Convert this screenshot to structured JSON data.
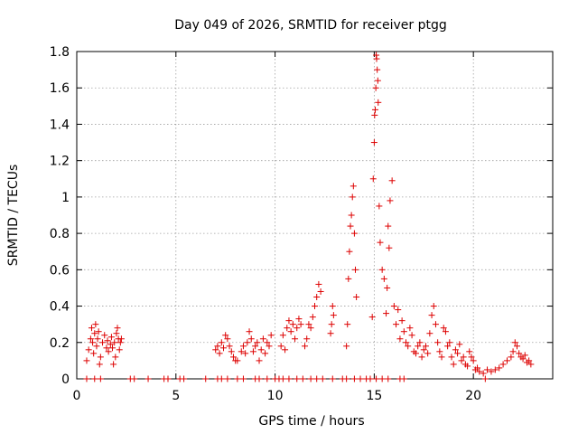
{
  "chart_data": {
    "type": "scatter",
    "title": "Day 049 of 2026, SRMTID for receiver ptgg",
    "xlabel": "GPS time / hours",
    "ylabel": "SRMTID / TECUs",
    "xlim": [
      0,
      24
    ],
    "ylim": [
      0,
      1.8
    ],
    "xticks": [
      0,
      5,
      10,
      15,
      20
    ],
    "xtick_labels": [
      "0",
      "5",
      "10",
      "15",
      "20"
    ],
    "yticks": [
      0,
      0.2,
      0.4,
      0.6,
      0.8,
      1,
      1.2,
      1.4,
      1.6,
      1.8
    ],
    "ytick_labels": [
      "0",
      "0.2",
      "0.4",
      "0.6",
      "0.8",
      "1",
      "1.2",
      "1.4",
      "1.6",
      "1.8"
    ],
    "grid": true,
    "marker": "+",
    "colors": {
      "marker": "#dd0000",
      "grid": "#a0a0a0",
      "axis": "#000000"
    },
    "series": [
      {
        "name": "SRMTID",
        "x": [
          0.5,
          0.6,
          0.7,
          0.75,
          0.8,
          0.85,
          0.9,
          0.95,
          1.0,
          1.05,
          1.1,
          1.15,
          1.2,
          1.3,
          1.4,
          1.5,
          1.55,
          1.6,
          1.7,
          1.75,
          1.8,
          1.85,
          1.9,
          1.95,
          2.0,
          2.05,
          2.1,
          2.15,
          2.2,
          2.25,
          7.0,
          7.1,
          7.2,
          7.3,
          7.4,
          7.5,
          7.6,
          7.7,
          7.8,
          7.9,
          8.0,
          8.1,
          8.3,
          8.4,
          8.5,
          8.6,
          8.7,
          8.8,
          8.9,
          9.0,
          9.1,
          9.2,
          9.3,
          9.4,
          9.5,
          9.6,
          9.7,
          9.8,
          10.3,
          10.4,
          10.5,
          10.6,
          10.7,
          10.8,
          10.9,
          11.0,
          11.1,
          11.2,
          11.3,
          11.5,
          11.6,
          11.7,
          11.8,
          11.9,
          12.0,
          12.1,
          12.2,
          12.3,
          12.8,
          12.85,
          12.9,
          12.95,
          13.6,
          13.65,
          13.7,
          13.75,
          13.8,
          13.85,
          13.9,
          13.95,
          14.0,
          14.05,
          14.1,
          14.9,
          14.95,
          15.0,
          15.02,
          15.05,
          15.08,
          15.1,
          15.12,
          15.15,
          15.18,
          15.2,
          15.25,
          15.3,
          15.4,
          15.5,
          15.6,
          15.65,
          15.7,
          15.75,
          15.8,
          15.9,
          16.0,
          16.1,
          16.2,
          16.3,
          16.4,
          16.5,
          16.6,
          16.7,
          16.8,
          16.9,
          17.0,
          17.1,
          17.2,
          17.3,
          17.4,
          17.5,
          17.6,
          17.7,
          17.8,
          17.9,
          18.0,
          18.1,
          18.2,
          18.3,
          18.4,
          18.5,
          18.6,
          18.7,
          18.8,
          18.9,
          19.0,
          19.1,
          19.2,
          19.3,
          19.4,
          19.5,
          19.6,
          19.7,
          19.8,
          19.9,
          20.0,
          20.1,
          20.2,
          20.3,
          20.5,
          20.7,
          20.9,
          21.1,
          21.3,
          21.5,
          21.7,
          21.9,
          22.0,
          22.1,
          22.2,
          22.3,
          22.4,
          22.5,
          22.6,
          22.7,
          22.8,
          22.9,
          0.5,
          0.9,
          1.2,
          2.7,
          2.9,
          3.6,
          4.4,
          4.6,
          5.2,
          5.4,
          6.5,
          7.1,
          7.3,
          7.6,
          8.1,
          8.4,
          9.0,
          9.2,
          9.6,
          10.0,
          10.2,
          10.4,
          10.7,
          11.1,
          11.4,
          11.8,
          12.1,
          12.4,
          12.9,
          13.4,
          13.6,
          14.0,
          14.3,
          14.6,
          14.8,
          15.1,
          15.4,
          15.7,
          16.3,
          16.5,
          20.6
        ],
        "y": [
          0.1,
          0.16,
          0.22,
          0.28,
          0.2,
          0.14,
          0.25,
          0.3,
          0.18,
          0.22,
          0.26,
          0.08,
          0.12,
          0.2,
          0.24,
          0.17,
          0.21,
          0.15,
          0.19,
          0.23,
          0.17,
          0.08,
          0.2,
          0.12,
          0.25,
          0.28,
          0.22,
          0.16,
          0.2,
          0.22,
          0.16,
          0.18,
          0.14,
          0.2,
          0.17,
          0.24,
          0.22,
          0.18,
          0.15,
          0.12,
          0.1,
          0.1,
          0.15,
          0.18,
          0.14,
          0.2,
          0.26,
          0.22,
          0.15,
          0.18,
          0.2,
          0.1,
          0.16,
          0.22,
          0.14,
          0.2,
          0.18,
          0.24,
          0.18,
          0.24,
          0.16,
          0.28,
          0.32,
          0.26,
          0.3,
          0.22,
          0.28,
          0.33,
          0.3,
          0.18,
          0.22,
          0.3,
          0.28,
          0.34,
          0.4,
          0.45,
          0.52,
          0.48,
          0.25,
          0.3,
          0.4,
          0.35,
          0.18,
          0.3,
          0.55,
          0.7,
          0.84,
          0.9,
          1.0,
          1.06,
          0.8,
          0.6,
          0.45,
          0.34,
          1.1,
          1.3,
          1.45,
          1.48,
          1.6,
          1.78,
          1.76,
          1.7,
          1.64,
          1.52,
          0.95,
          0.75,
          0.6,
          0.55,
          0.36,
          0.5,
          0.84,
          0.72,
          0.98,
          1.09,
          0.4,
          0.3,
          0.38,
          0.22,
          0.32,
          0.26,
          0.2,
          0.18,
          0.28,
          0.24,
          0.15,
          0.14,
          0.18,
          0.2,
          0.12,
          0.16,
          0.18,
          0.14,
          0.25,
          0.35,
          0.4,
          0.3,
          0.2,
          0.15,
          0.12,
          0.28,
          0.26,
          0.18,
          0.2,
          0.12,
          0.08,
          0.16,
          0.14,
          0.19,
          0.1,
          0.12,
          0.08,
          0.07,
          0.15,
          0.12,
          0.1,
          0.05,
          0.06,
          0.04,
          0.03,
          0.05,
          0.04,
          0.05,
          0.06,
          0.08,
          0.1,
          0.12,
          0.15,
          0.2,
          0.18,
          0.14,
          0.12,
          0.11,
          0.13,
          0.09,
          0.1,
          0.08,
          0,
          0,
          0,
          0,
          0,
          0,
          0,
          0,
          0,
          0,
          0,
          0,
          0,
          0,
          0,
          0,
          0,
          0,
          0,
          0,
          0,
          0,
          0,
          0,
          0,
          0,
          0,
          0,
          0,
          0,
          0,
          0,
          0,
          0,
          0,
          0,
          0,
          0,
          0,
          0,
          0
        ]
      }
    ]
  }
}
